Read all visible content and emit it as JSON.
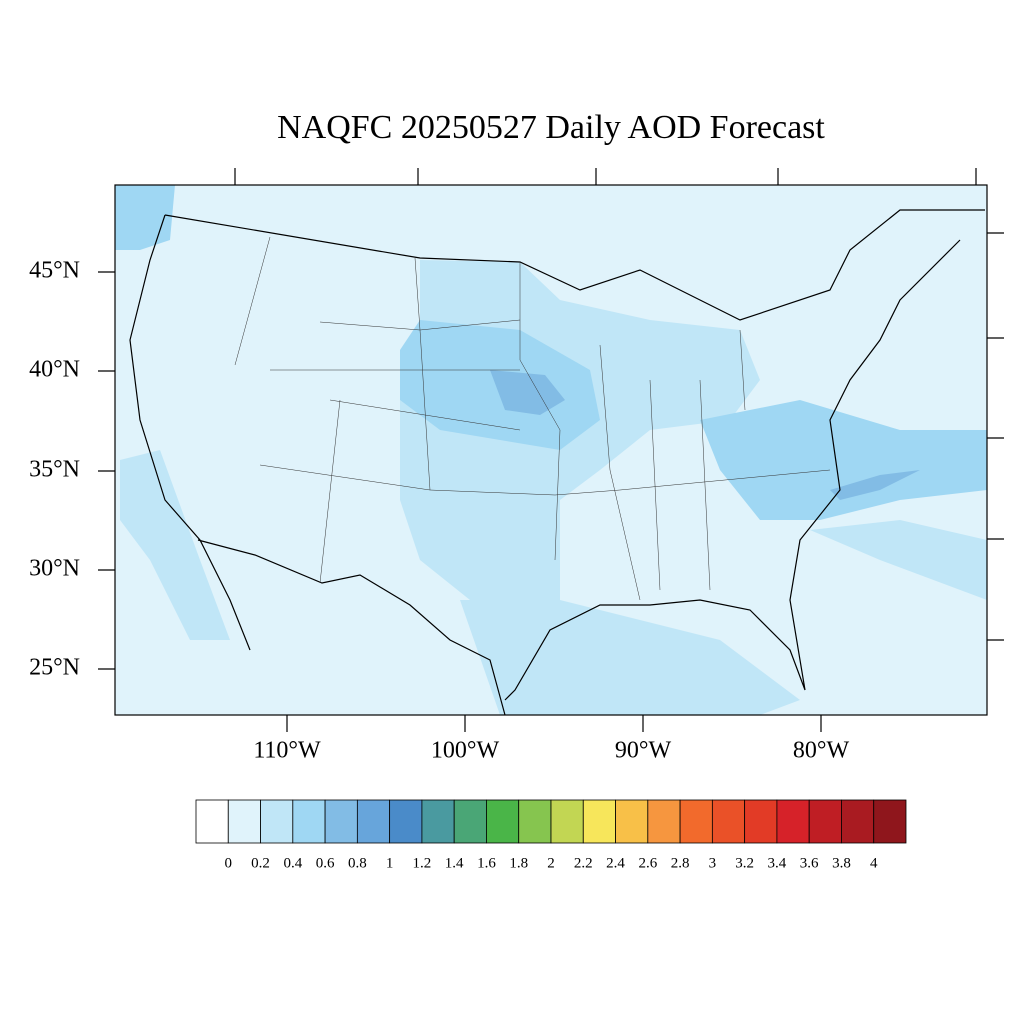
{
  "title": "NAQFC 20250527 Daily AOD Forecast",
  "latitude_labels": [
    "45°N",
    "40°N",
    "35°N",
    "30°N",
    "25°N"
  ],
  "longitude_labels": [
    "110°W",
    "100°W",
    "90°W",
    "80°W"
  ],
  "colorbar": {
    "levels": [
      0,
      0.2,
      0.4,
      0.6,
      0.8,
      1,
      1.2,
      1.4,
      1.6,
      1.8,
      2,
      2.2,
      2.4,
      2.6,
      2.8,
      3,
      3.2,
      3.4,
      3.6,
      3.8,
      4
    ],
    "colors": [
      "#ffffff",
      "#e0f3fb",
      "#c0e6f7",
      "#9fd7f3",
      "#82bce5",
      "#67a5db",
      "#4a8bc9",
      "#4a9aa0",
      "#4aa676",
      "#4ab548",
      "#86c54f",
      "#c2d653",
      "#f7e65b",
      "#f8c048",
      "#f6963f",
      "#f26a2c",
      "#ea5128",
      "#e23b26",
      "#d62229",
      "#bf1e24",
      "#a91b21",
      "#8f161c"
    ]
  }
}
